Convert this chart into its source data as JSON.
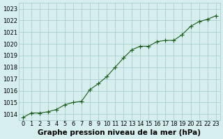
{
  "x": [
    0,
    1,
    2,
    3,
    4,
    5,
    6,
    7,
    8,
    9,
    10,
    11,
    12,
    13,
    14,
    15,
    16,
    17,
    18,
    19,
    20,
    21,
    22,
    23
  ],
  "y": [
    1013.7,
    1014.1,
    1014.1,
    1014.2,
    1014.4,
    1014.8,
    1015.0,
    1015.1,
    1016.1,
    1016.6,
    1017.2,
    1018.0,
    1018.8,
    1019.5,
    1019.8,
    1019.8,
    1020.2,
    1020.3,
    1020.3,
    1020.8,
    1021.5,
    1021.9,
    1022.1,
    1022.4
  ],
  "line_color": "#1a5c1a",
  "marker_color": "#1a5c1a",
  "bg_color": "#d6eeee",
  "grid_color": "#a0c8c8",
  "xlabel": "Graphe pression niveau de la mer (hPa)",
  "ylim": [
    1013.5,
    1023.5
  ],
  "xlim": [
    -0.5,
    23.5
  ],
  "yticks": [
    1014,
    1015,
    1016,
    1017,
    1018,
    1019,
    1020,
    1021,
    1022,
    1023
  ],
  "xticks": [
    0,
    1,
    2,
    3,
    4,
    5,
    6,
    7,
    8,
    9,
    10,
    11,
    12,
    13,
    14,
    15,
    16,
    17,
    18,
    19,
    20,
    21,
    22,
    23
  ],
  "xlabel_fontsize": 7.5,
  "tick_fontsize": 6
}
